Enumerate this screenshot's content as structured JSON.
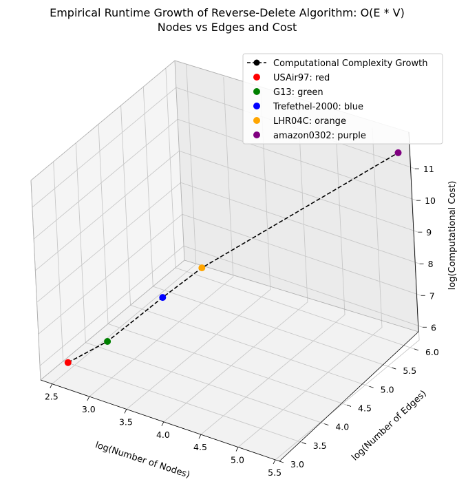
{
  "chart_data": {
    "type": "scatter3d",
    "title_lines": [
      "Empirical Runtime Growth of Reverse-Delete Algorithm:  O(E * V)",
      "Nodes vs Edges and Cost"
    ],
    "xlabel": "log(Number of Nodes)",
    "ylabel": "log(Number of Edges)",
    "zlabel": "log(Computational Cost)",
    "xticks": [
      "2.5",
      "3.0",
      "3.5",
      "4.0",
      "4.5",
      "5.0",
      "5.5"
    ],
    "yticks": [
      "3.0",
      "3.5",
      "4.0",
      "4.5",
      "5.0",
      "5.5",
      "6.0"
    ],
    "zticks": [
      "6",
      "7",
      "8",
      "9",
      "10",
      "11"
    ],
    "grid": true,
    "legend_position": "top-right",
    "line_series": {
      "name": "Computational Complexity Growth",
      "color": "#000000",
      "style": "dashed",
      "marker": "circle"
    },
    "points": [
      {
        "label": "USAir97: red",
        "color": "#ff0000",
        "x": 2.52,
        "y": 3.33,
        "z": 5.85
      },
      {
        "label": "G13: green",
        "color": "#008000",
        "x": 2.9,
        "y": 3.6,
        "z": 6.5
      },
      {
        "label": "Trefethel-2000: blue",
        "color": "#0000ff",
        "x": 3.3,
        "y": 4.2,
        "z": 7.5
      },
      {
        "label": "LHR04C: orange",
        "color": "#ffa500",
        "x": 3.6,
        "y": 4.6,
        "z": 8.2
      },
      {
        "label": "amazon0302: purple",
        "color": "#800080",
        "x": 5.4,
        "y": 6.1,
        "z": 11.5
      }
    ]
  }
}
